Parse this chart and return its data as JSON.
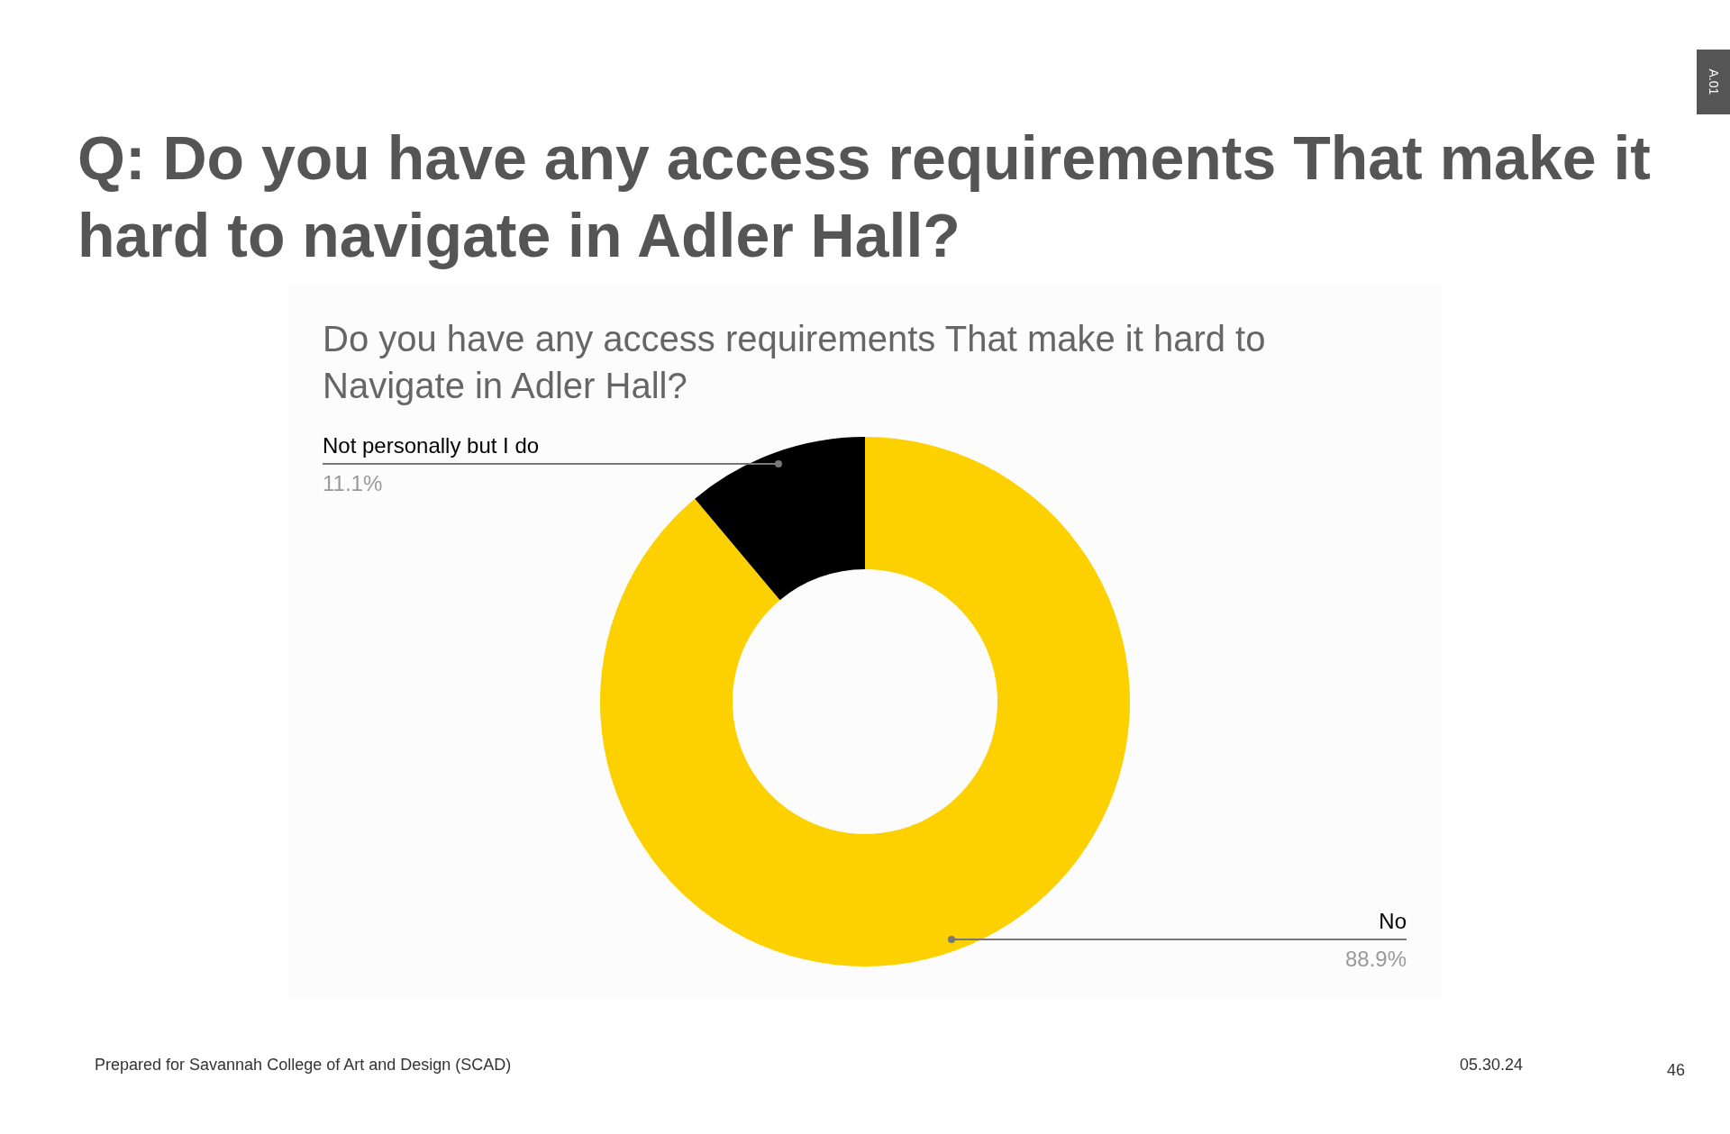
{
  "chart_data": {
    "type": "donut",
    "title": "Q: Do you have any access requirements That make it hard to navigate in Adler Hall?",
    "subtitle": "Do you have any access requirements That make it hard to Navigate in Adler Hall?",
    "categories": [
      "No",
      "Not personally but I do"
    ],
    "values": [
      88.9,
      11.1
    ],
    "colors": [
      "#fdd000",
      "#000000"
    ],
    "value_labels": [
      "88.9%",
      "11.1%"
    ],
    "annotations": [
      "Prepared for Savannah College of Art and Design (SCAD)",
      "05.30.24",
      "46",
      "A.01"
    ]
  }
}
